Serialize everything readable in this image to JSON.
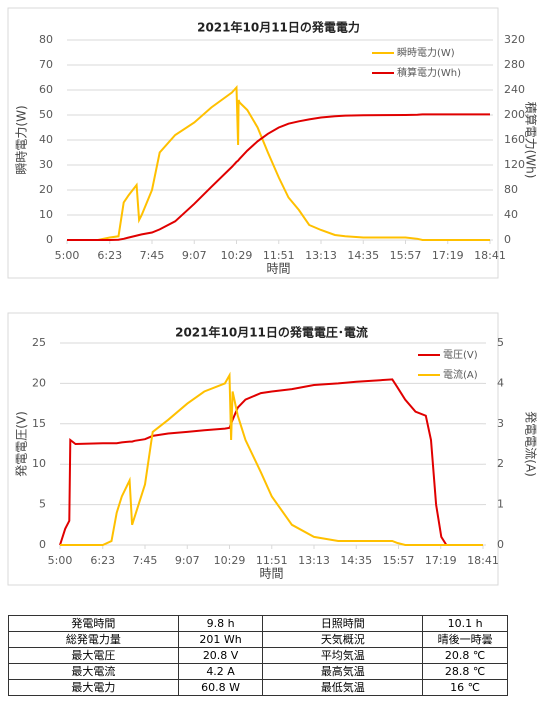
{
  "chart_data": [
    {
      "type": "line",
      "title": "2021年10月11日の発電電力",
      "x_label": "時間",
      "y_label": "瞬時電力(W)",
      "y2_label": "積算電力(Wh)",
      "x": [
        300,
        360,
        383,
        400,
        410,
        420,
        435,
        440,
        445,
        465,
        480,
        510,
        547,
        580,
        620,
        629,
        632,
        633,
        635,
        650,
        670,
        690,
        711,
        730,
        750,
        770,
        793,
        820,
        840,
        875,
        957,
        980,
        990,
        1121
      ],
      "xlim": [
        300,
        1121
      ],
      "xticks": [
        {
          "value": 300,
          "label": "5:00"
        },
        {
          "value": 383,
          "label": "6:23"
        },
        {
          "value": 465,
          "label": "7:45"
        },
        {
          "value": 547,
          "label": "9:07"
        },
        {
          "value": 629,
          "label": "10:29"
        },
        {
          "value": 711,
          "label": "11:51"
        },
        {
          "value": 793,
          "label": "13:13"
        },
        {
          "value": 875,
          "label": "14:35"
        },
        {
          "value": 957,
          "label": "15:57"
        },
        {
          "value": 1039,
          "label": "17:19"
        },
        {
          "value": 1121,
          "label": "18:41"
        }
      ],
      "ylim": [
        0,
        80
      ],
      "yticks": [
        0,
        10,
        20,
        30,
        40,
        50,
        60,
        70,
        80
      ],
      "y2lim": [
        0,
        320
      ],
      "y2ticks": [
        0,
        40,
        80,
        120,
        160,
        200,
        240,
        280,
        320
      ],
      "grid": true,
      "legend": "upper right",
      "series": [
        {
          "name": "瞬時電力(W)",
          "color": "#ffc000",
          "values": [
            0,
            0,
            1,
            1.5,
            15,
            18,
            22,
            8,
            10,
            20,
            35,
            42,
            47,
            53,
            59,
            61,
            38,
            56,
            55,
            52,
            45,
            35,
            25,
            17,
            12,
            6,
            4,
            2,
            1.5,
            1,
            1,
            0.5,
            0,
            0
          ]
        },
        {
          "name": "積算電力(Wh)",
          "color": "#e00000",
          "axis": "y2",
          "values": [
            0,
            0,
            0,
            0.5,
            2,
            4,
            7,
            8,
            9,
            12,
            17,
            30,
            58,
            85,
            117,
            125,
            127,
            128,
            130,
            143,
            158,
            170,
            180,
            186,
            190,
            193,
            196,
            198,
            199,
            199.5,
            200,
            200.5,
            201,
            201
          ]
        }
      ]
    },
    {
      "type": "line",
      "title": "2021年10月11日の発電電圧･電流",
      "x_label": "時間",
      "y_label": "発電電圧(V)",
      "y2_label": "発電電流(A)",
      "x": [
        300,
        310,
        318,
        320,
        330,
        383,
        400,
        410,
        420,
        435,
        440,
        445,
        465,
        480,
        510,
        547,
        580,
        620,
        629,
        632,
        635,
        645,
        660,
        690,
        711,
        750,
        793,
        840,
        875,
        945,
        955,
        970,
        990,
        1010,
        1020,
        1030,
        1040,
        1050,
        1121
      ],
      "xlim": [
        300,
        1121
      ],
      "xticks": [
        {
          "value": 300,
          "label": "5:00"
        },
        {
          "value": 383,
          "label": "6:23"
        },
        {
          "value": 465,
          "label": "7:45"
        },
        {
          "value": 547,
          "label": "9:07"
        },
        {
          "value": 629,
          "label": "10:29"
        },
        {
          "value": 711,
          "label": "11:51"
        },
        {
          "value": 793,
          "label": "13:13"
        },
        {
          "value": 875,
          "label": "14:35"
        },
        {
          "value": 957,
          "label": "15:57"
        },
        {
          "value": 1039,
          "label": "17:19"
        },
        {
          "value": 1121,
          "label": "18:41"
        }
      ],
      "ylim": [
        0,
        25
      ],
      "yticks": [
        0,
        5,
        10,
        15,
        20,
        25
      ],
      "y2lim": [
        0,
        5
      ],
      "y2ticks": [
        0,
        1,
        2,
        3,
        4,
        5
      ],
      "grid": true,
      "legend": "upper right",
      "series": [
        {
          "name": "電圧(V)",
          "color": "#e00000",
          "values": [
            0,
            2,
            3,
            13,
            12.5,
            12.6,
            12.6,
            12.6,
            12.7,
            12.8,
            12.8,
            12.9,
            13.1,
            13.5,
            13.8,
            14,
            14.2,
            14.4,
            14.5,
            15,
            15.5,
            17,
            18,
            18.8,
            19,
            19.3,
            19.8,
            20,
            20.2,
            20.5,
            19.5,
            18,
            16.5,
            16,
            13,
            5,
            1,
            0,
            0
          ]
        },
        {
          "name": "電流(A)",
          "color": "#ffc000",
          "axis": "y2",
          "values": [
            0,
            0,
            0,
            0,
            0,
            0,
            0.1,
            0.8,
            1.2,
            1.6,
            0.5,
            0.7,
            1.5,
            2.8,
            3.1,
            3.5,
            3.8,
            4,
            4.2,
            2.6,
            3.8,
            3.2,
            2.6,
            1.8,
            1.2,
            0.5,
            0.2,
            0.1,
            0.1,
            0.1,
            0.05,
            0,
            0,
            0,
            0,
            0,
            0,
            0,
            0
          ]
        }
      ]
    }
  ],
  "table": {
    "rows": [
      [
        "発電時間",
        "9.8 h",
        "日照時間",
        "10.1 h"
      ],
      [
        "総発電力量",
        "201 Wh",
        "天気概況",
        "晴後一時曇"
      ],
      [
        "最大電圧",
        "20.8 V",
        "平均気温",
        "20.8 ℃"
      ],
      [
        "最大電流",
        "4.2 A",
        "最高気温",
        "28.8 ℃"
      ],
      [
        "最大電力",
        "60.8 W",
        "最低気温",
        "16 ℃"
      ]
    ]
  }
}
